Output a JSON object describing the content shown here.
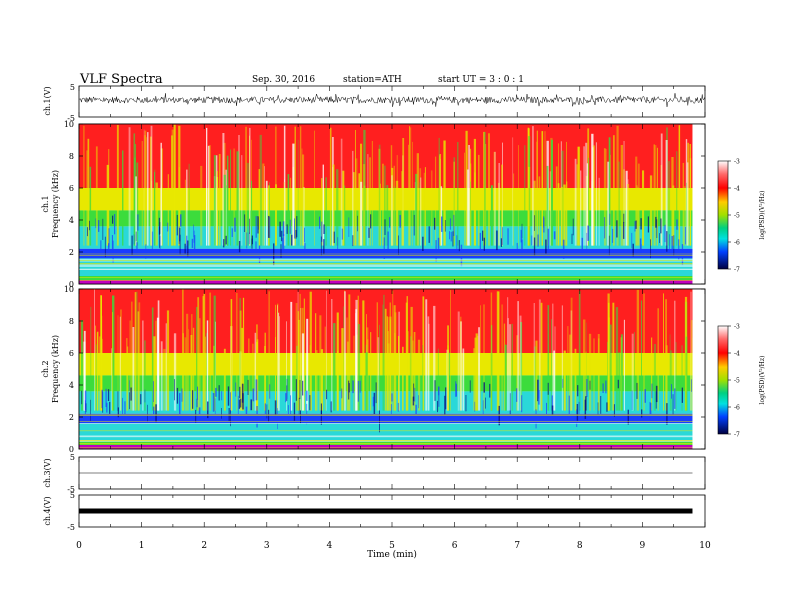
{
  "header": {
    "title": "VLF  Spectra",
    "date": "Sep. 30, 2016",
    "station": "station=ATH",
    "start_ut": "start  UT  =    3  : 0   : 1"
  },
  "chart_data": [
    {
      "type": "line",
      "panel": "ch1-waveform",
      "ylabel": "ch.1(V)",
      "ylim": [
        -5,
        5
      ],
      "yticks": [
        "5",
        "-5"
      ],
      "xlim": [
        0,
        10
      ],
      "description_values": {
        "baseline_v": 0.5,
        "amplitude_v": 1.5
      }
    },
    {
      "type": "heatmap",
      "panel": "ch1-spectrogram",
      "ylabel": [
        "ch.1",
        "Frequency  (kHz)"
      ],
      "ylim": [
        0,
        10
      ],
      "yticks": [
        "0",
        "2",
        "4",
        "6",
        "8",
        "10"
      ],
      "xlim": [
        0,
        9.8
      ],
      "colorbar": {
        "label": "log(PSD)(V²/Hz)",
        "range": [
          -7,
          -3
        ],
        "ticks": [
          "-3",
          "-4",
          "-5",
          "-6",
          "-7"
        ]
      },
      "bands_khz": [
        {
          "from": 0,
          "to": 0.4,
          "level": "green/magenta"
        },
        {
          "from": 0.4,
          "to": 2,
          "level": "cyan-green"
        },
        {
          "from": 2,
          "to": 4,
          "level": "cyan-blue"
        },
        {
          "from": 4,
          "to": 6,
          "level": "green-yellow"
        },
        {
          "from": 6,
          "to": 10,
          "level": "red"
        }
      ]
    },
    {
      "type": "heatmap",
      "panel": "ch2-spectrogram",
      "ylabel": [
        "ch.2",
        "Frequency  (kHz)"
      ],
      "ylim": [
        0,
        10
      ],
      "yticks": [
        "0",
        "2",
        "4",
        "6",
        "8",
        "10"
      ],
      "xlim": [
        0,
        9.8
      ],
      "colorbar": {
        "label": "log(PSD)(V²/Hz)",
        "range": [
          -7,
          -3
        ],
        "ticks": [
          "-3",
          "-4",
          "-5",
          "-6",
          "-7"
        ]
      }
    },
    {
      "type": "line",
      "panel": "ch3-waveform",
      "ylabel": "ch.3(V)",
      "ylim": [
        -5,
        5
      ],
      "yticks": [
        "5",
        "-5"
      ],
      "description_values": {
        "level_v": 0
      }
    },
    {
      "type": "line",
      "panel": "ch4-waveform",
      "ylabel": "ch.4(V)",
      "ylim": [
        -5,
        5
      ],
      "yticks": [
        "5",
        "-5"
      ],
      "description_values": {
        "level_v": 0
      }
    }
  ],
  "xaxis": {
    "label": "Time  (min)",
    "xlim": [
      0,
      10
    ],
    "ticks": [
      "0",
      "1",
      "2",
      "3",
      "4",
      "5",
      "6",
      "7",
      "8",
      "9",
      "10"
    ]
  },
  "colors": {
    "red": "#ff1f1f",
    "yellow": "#e8e800",
    "green": "#3cdc3c",
    "cyan": "#2ad8d8",
    "blue": "#1a3cff",
    "navy": "#000080",
    "magenta": "#c000c0"
  }
}
